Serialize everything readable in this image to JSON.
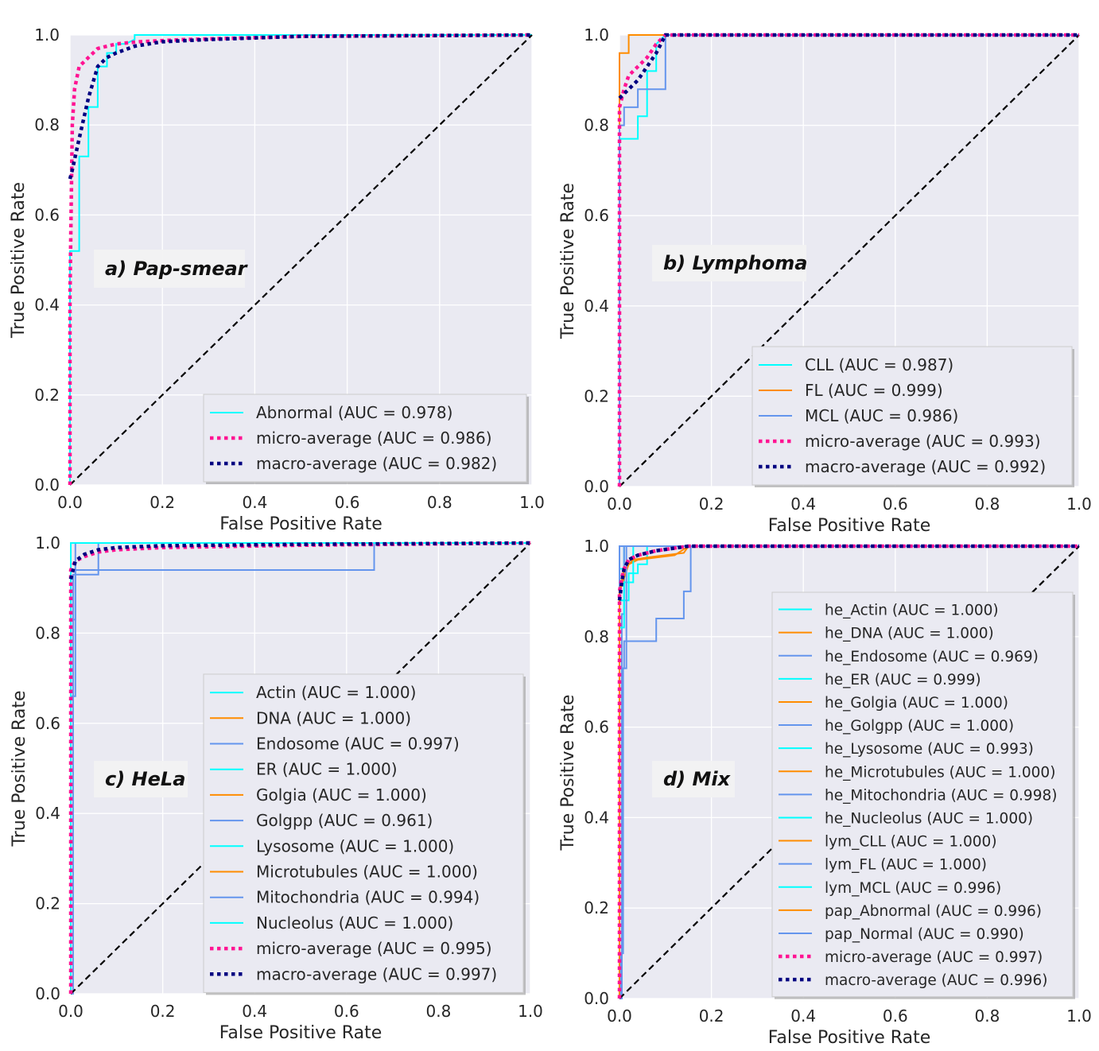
{
  "chart_data": [
    {
      "type": "line",
      "panel_label": "a) Pap-smear",
      "xlabel": "False Positive Rate",
      "ylabel": "True Positive Rate",
      "xlim": [
        0.0,
        1.0
      ],
      "ylim": [
        0.0,
        1.0
      ],
      "xticks": [
        "0.0",
        "0.2",
        "0.4",
        "0.6",
        "0.8",
        "1.0"
      ],
      "yticks": [
        "0.0",
        "0.2",
        "0.4",
        "0.6",
        "0.8",
        "1.0"
      ],
      "legend_position": "lower-right",
      "series": [
        {
          "name": "Abnormal (AUC = 0.978)",
          "color": "#00ffff",
          "style": "solid",
          "x": [
            0,
            0,
            0.02,
            0.02,
            0.04,
            0.04,
            0.06,
            0.06,
            0.08,
            0.08,
            0.1,
            0.1,
            0.12,
            0.14,
            0.14,
            0.5,
            1.0
          ],
          "y": [
            0,
            0.52,
            0.52,
            0.73,
            0.73,
            0.84,
            0.84,
            0.93,
            0.93,
            0.96,
            0.96,
            0.98,
            0.98,
            0.99,
            1.0,
            1.0,
            1.0
          ]
        },
        {
          "name": "micro-average (AUC = 0.986)",
          "color": "#ff1493",
          "style": "dotted",
          "x": [
            0,
            0,
            0.005,
            0.01,
            0.02,
            0.04,
            0.06,
            0.1,
            0.15,
            0.25,
            0.5,
            1.0
          ],
          "y": [
            0,
            0.42,
            0.8,
            0.88,
            0.93,
            0.95,
            0.97,
            0.98,
            0.985,
            0.99,
            0.997,
            1.0
          ]
        },
        {
          "name": "macro-average (AUC = 0.982)",
          "color": "#000080",
          "style": "dotted",
          "x": [
            0,
            0.005,
            0.02,
            0.04,
            0.06,
            0.08,
            0.1,
            0.14,
            0.2,
            0.3,
            0.5,
            1.0
          ],
          "y": [
            0.68,
            0.7,
            0.77,
            0.86,
            0.93,
            0.95,
            0.96,
            0.975,
            0.985,
            0.99,
            0.997,
            1.0
          ]
        },
        {
          "name": "chance",
          "color": "#000000",
          "style": "dashed",
          "x": [
            0,
            1
          ],
          "y": [
            0,
            1
          ]
        }
      ]
    },
    {
      "type": "line",
      "panel_label": "b) Lymphoma",
      "xlabel": "False Positive Rate",
      "ylabel": "True Positive Rate",
      "xlim": [
        0.0,
        1.0
      ],
      "ylim": [
        0.0,
        1.0
      ],
      "xticks": [
        "0.0",
        "0.2",
        "0.4",
        "0.6",
        "0.8",
        "1.0"
      ],
      "yticks": [
        "0.0",
        "0.2",
        "0.4",
        "0.6",
        "0.8",
        "1.0"
      ],
      "legend_position": "lower-right",
      "series": [
        {
          "name": "CLL (AUC = 0.987)",
          "color": "#00ffff",
          "style": "solid",
          "x": [
            0,
            0,
            0.04,
            0.04,
            0.06,
            0.06,
            0.08,
            0.08,
            0.1,
            1.0
          ],
          "y": [
            0,
            0.77,
            0.77,
            0.82,
            0.82,
            0.92,
            0.92,
            0.98,
            1.0,
            1.0
          ]
        },
        {
          "name": "FL (AUC = 0.999)",
          "color": "#ff8c00",
          "style": "solid",
          "x": [
            0,
            0,
            0.02,
            0.02,
            1.0
          ],
          "y": [
            0,
            0.96,
            0.96,
            1.0,
            1.0
          ]
        },
        {
          "name": "MCL (AUC = 0.986)",
          "color": "#6495ed",
          "style": "solid",
          "x": [
            0,
            0,
            0.01,
            0.01,
            0.04,
            0.04,
            0.1,
            0.1,
            1.0
          ],
          "y": [
            0,
            0.8,
            0.8,
            0.84,
            0.84,
            0.88,
            0.88,
            1.0,
            1.0
          ]
        },
        {
          "name": "micro-average (AUC = 0.993)",
          "color": "#ff1493",
          "style": "dotted",
          "x": [
            0,
            0,
            0.01,
            0.02,
            0.04,
            0.06,
            0.08,
            0.1,
            1.0
          ],
          "y": [
            0,
            0.84,
            0.88,
            0.91,
            0.93,
            0.95,
            0.98,
            1.0,
            1.0
          ]
        },
        {
          "name": "macro-average (AUC = 0.992)",
          "color": "#000080",
          "style": "dotted",
          "x": [
            0,
            0.02,
            0.04,
            0.06,
            0.08,
            0.1,
            1.0
          ],
          "y": [
            0.86,
            0.88,
            0.9,
            0.93,
            0.96,
            1.0,
            1.0
          ]
        },
        {
          "name": "chance",
          "color": "#000000",
          "style": "dashed",
          "x": [
            0,
            1
          ],
          "y": [
            0,
            1
          ]
        }
      ]
    },
    {
      "type": "line",
      "panel_label": "c) HeLa",
      "xlabel": "False Positive Rate",
      "ylabel": "True Positive Rate",
      "xlim": [
        0.0,
        1.0
      ],
      "ylim": [
        0.0,
        1.0
      ],
      "xticks": [
        "0.0",
        "0.2",
        "0.4",
        "0.6",
        "0.8",
        "1.0"
      ],
      "yticks": [
        "0.0",
        "0.2",
        "0.4",
        "0.6",
        "0.8",
        "1.0"
      ],
      "legend_position": "lower-right",
      "series": [
        {
          "name": "Actin (AUC = 1.000)",
          "color": "#00ffff",
          "style": "solid",
          "x": [
            0,
            0,
            1
          ],
          "y": [
            0,
            1,
            1
          ]
        },
        {
          "name": "DNA (AUC = 1.000)",
          "color": "#ff8c00",
          "style": "solid",
          "x": [
            0,
            0,
            1
          ],
          "y": [
            0,
            1,
            1
          ]
        },
        {
          "name": "Endosome (AUC = 0.997)",
          "color": "#6495ed",
          "style": "solid",
          "x": [
            0,
            0.005,
            0.005,
            0.06,
            0.06,
            1
          ],
          "y": [
            0,
            0,
            0.93,
            0.93,
            1.0,
            1.0
          ]
        },
        {
          "name": "ER (AUC = 1.000)",
          "color": "#00ffff",
          "style": "solid",
          "x": [
            0,
            0,
            1
          ],
          "y": [
            0,
            1,
            1
          ]
        },
        {
          "name": "Golgia (AUC = 1.000)",
          "color": "#ff8c00",
          "style": "solid",
          "x": [
            0,
            0,
            1
          ],
          "y": [
            0,
            1,
            1
          ]
        },
        {
          "name": "Golgpp (AUC = 0.961)",
          "color": "#6495ed",
          "style": "solid",
          "x": [
            0,
            0,
            0.01,
            0.01,
            0.66,
            0.66,
            1
          ],
          "y": [
            0,
            0.83,
            0.83,
            0.94,
            0.94,
            1.0,
            1.0
          ]
        },
        {
          "name": "Lysosome (AUC = 1.000)",
          "color": "#00ffff",
          "style": "solid",
          "x": [
            0,
            0,
            1
          ],
          "y": [
            0,
            1,
            1
          ]
        },
        {
          "name": "Microtubules (AUC = 1.000)",
          "color": "#ff8c00",
          "style": "solid",
          "x": [
            0,
            0,
            1
          ],
          "y": [
            0,
            1,
            1
          ]
        },
        {
          "name": "Mitochondria (AUC = 0.994)",
          "color": "#6495ed",
          "style": "solid",
          "x": [
            0,
            0,
            0.01,
            0.01,
            1
          ],
          "y": [
            0,
            0.66,
            0.66,
            1.0,
            1.0
          ]
        },
        {
          "name": "Nucleolus (AUC = 1.000)",
          "color": "#00ffff",
          "style": "solid",
          "x": [
            0,
            0,
            1
          ],
          "y": [
            0,
            1,
            1
          ]
        },
        {
          "name": "micro-average (AUC = 0.995)",
          "color": "#ff1493",
          "style": "dotted",
          "x": [
            0,
            0,
            0.01,
            0.03,
            0.06,
            0.1,
            0.2,
            0.5,
            1.0
          ],
          "y": [
            0,
            0.94,
            0.96,
            0.97,
            0.98,
            0.985,
            0.99,
            0.995,
            1.0
          ]
        },
        {
          "name": "macro-average (AUC = 0.997)",
          "color": "#000080",
          "style": "dotted",
          "x": [
            0,
            0.01,
            0.03,
            0.06,
            0.1,
            0.2,
            0.5,
            1.0
          ],
          "y": [
            0.92,
            0.96,
            0.975,
            0.985,
            0.99,
            0.994,
            0.997,
            1.0
          ]
        },
        {
          "name": "chance",
          "color": "#000000",
          "style": "dashed",
          "x": [
            0,
            1
          ],
          "y": [
            0,
            1
          ]
        }
      ]
    },
    {
      "type": "line",
      "panel_label": "d) Mix",
      "xlabel": "False Positive Rate",
      "ylabel": "True Positive Rate",
      "xlim": [
        0.0,
        1.0
      ],
      "ylim": [
        0.0,
        1.0
      ],
      "xticks": [
        "0.0",
        "0.2",
        "0.4",
        "0.6",
        "0.8",
        "1.0"
      ],
      "yticks": [
        "0.0",
        "0.2",
        "0.4",
        "0.6",
        "0.8",
        "1.0"
      ],
      "legend_position": "right",
      "series": [
        {
          "name": "he_Actin (AUC = 1.000)",
          "color": "#00ffff",
          "style": "solid",
          "x": [
            0,
            0,
            1
          ],
          "y": [
            0,
            1,
            1
          ]
        },
        {
          "name": "he_DNA (AUC = 1.000)",
          "color": "#ff8c00",
          "style": "solid",
          "x": [
            0,
            0,
            1
          ],
          "y": [
            0,
            1,
            1
          ]
        },
        {
          "name": "he_Endosome (AUC = 0.969)",
          "color": "#6495ed",
          "style": "solid",
          "x": [
            0,
            0.005,
            0.005,
            0.01,
            0.01,
            0.08,
            0.08,
            0.14,
            0.14,
            0.155,
            0.155,
            1
          ],
          "y": [
            0,
            0,
            0.73,
            0.73,
            0.79,
            0.79,
            0.84,
            0.84,
            0.9,
            0.9,
            1.0,
            1.0
          ]
        },
        {
          "name": "he_ER (AUC = 0.999)",
          "color": "#00ffff",
          "style": "solid",
          "x": [
            0,
            0,
            0.01,
            0.01,
            1
          ],
          "y": [
            0,
            0.95,
            0.95,
            1.0,
            1.0
          ]
        },
        {
          "name": "he_Golgia (AUC = 1.000)",
          "color": "#ff8c00",
          "style": "solid",
          "x": [
            0,
            0,
            1
          ],
          "y": [
            0,
            1,
            1
          ]
        },
        {
          "name": "he_Golgpp (AUC = 1.000)",
          "color": "#6495ed",
          "style": "solid",
          "x": [
            0,
            0,
            1
          ],
          "y": [
            0,
            1,
            1
          ]
        },
        {
          "name": "he_Lysosome (AUC = 0.993)",
          "color": "#00ffff",
          "style": "solid",
          "x": [
            0,
            0,
            0.02,
            0.02,
            0.04,
            0.04,
            0.06,
            0.06,
            1
          ],
          "y": [
            0,
            0.88,
            0.88,
            0.94,
            0.94,
            0.96,
            0.96,
            1.0,
            1.0
          ]
        },
        {
          "name": "he_Microtubules (AUC = 1.000)",
          "color": "#ff8c00",
          "style": "solid",
          "x": [
            0,
            0,
            1
          ],
          "y": [
            0,
            1,
            1
          ]
        },
        {
          "name": "he_Mitochondria (AUC = 0.998)",
          "color": "#6495ed",
          "style": "solid",
          "x": [
            0,
            0.005,
            0.005,
            0.01,
            0.01,
            1
          ],
          "y": [
            0,
            0,
            0.85,
            0.85,
            1.0,
            1.0
          ]
        },
        {
          "name": "he_Nucleolus (AUC = 1.000)",
          "color": "#00ffff",
          "style": "solid",
          "x": [
            0,
            0,
            1
          ],
          "y": [
            0,
            1,
            1
          ]
        },
        {
          "name": "lym_CLL (AUC = 1.000)",
          "color": "#ff8c00",
          "style": "solid",
          "x": [
            0,
            0,
            0.02,
            0.04,
            0.08,
            0.12,
            0.15,
            1
          ],
          "y": [
            0,
            0.9,
            0.96,
            0.97,
            0.975,
            0.98,
            1.0,
            1.0
          ]
        },
        {
          "name": "lym_FL (AUC = 1.000)",
          "color": "#6495ed",
          "style": "solid",
          "x": [
            0,
            0,
            1
          ],
          "y": [
            0,
            1,
            1
          ]
        },
        {
          "name": "lym_MCL (AUC = 0.996)",
          "color": "#00ffff",
          "style": "solid",
          "x": [
            0,
            0,
            0.01,
            0.01,
            0.03,
            0.03,
            1
          ],
          "y": [
            0,
            0.82,
            0.82,
            0.92,
            0.92,
            1.0,
            1.0
          ]
        },
        {
          "name": "pap_Abnormal (AUC = 0.996)",
          "color": "#ff8c00",
          "style": "solid",
          "x": [
            0,
            0,
            0.01,
            0.03,
            0.06,
            0.1,
            0.14,
            0.15,
            1
          ],
          "y": [
            0,
            0.9,
            0.95,
            0.97,
            0.975,
            0.98,
            0.985,
            1.0,
            1.0
          ]
        },
        {
          "name": "pap_Normal (AUC = 0.990)",
          "color": "#6495ed",
          "style": "solid",
          "x": [
            0,
            0.003,
            0.003,
            0.008,
            0.008,
            0.015,
            0.015,
            1
          ],
          "y": [
            0,
            0,
            0.1,
            0.1,
            0.73,
            0.73,
            1.0,
            1.0
          ]
        },
        {
          "name": "micro-average (AUC = 0.997)",
          "color": "#ff1493",
          "style": "dotted",
          "x": [
            0,
            0,
            0.005,
            0.01,
            0.02,
            0.04,
            0.08,
            0.15,
            1.0
          ],
          "y": [
            0,
            0.9,
            0.93,
            0.95,
            0.97,
            0.98,
            0.99,
            1.0,
            1.0
          ]
        },
        {
          "name": "macro-average (AUC = 0.996)",
          "color": "#000080",
          "style": "dotted",
          "x": [
            0,
            0.005,
            0.01,
            0.02,
            0.04,
            0.08,
            0.15,
            1.0
          ],
          "y": [
            0.88,
            0.92,
            0.95,
            0.97,
            0.98,
            0.99,
            1.0,
            1.0
          ]
        },
        {
          "name": "chance",
          "color": "#000000",
          "style": "dashed",
          "x": [
            0,
            1
          ],
          "y": [
            0,
            1
          ]
        }
      ]
    }
  ]
}
